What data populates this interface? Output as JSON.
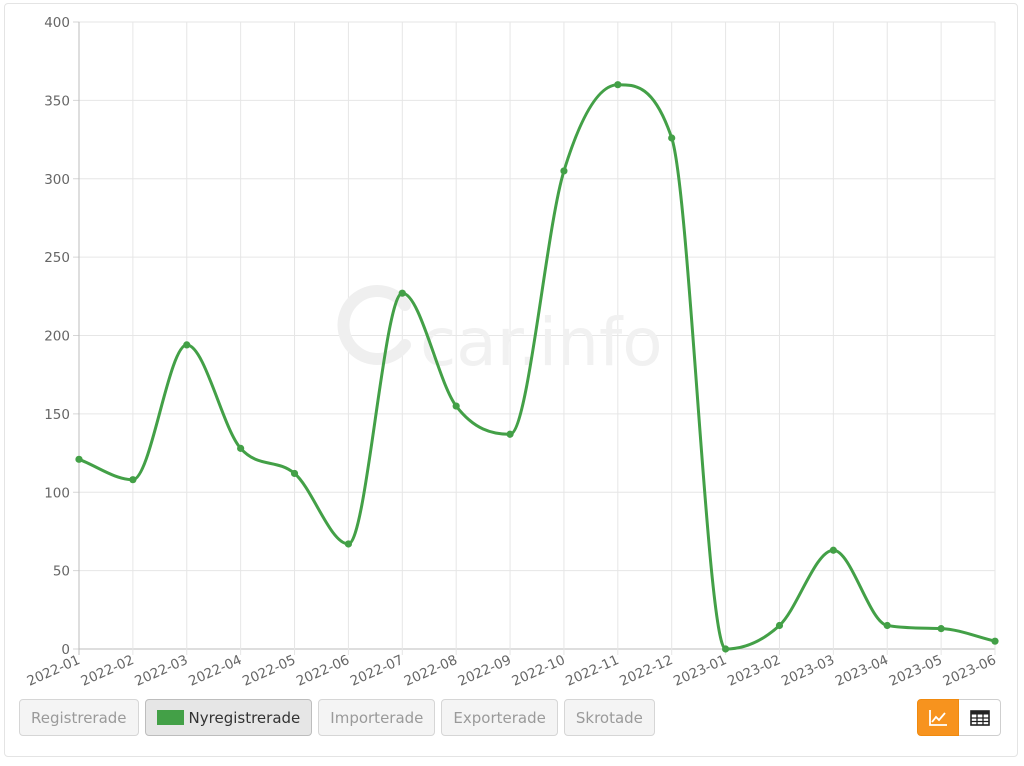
{
  "chart_data": {
    "type": "line",
    "categories": [
      "2022-01",
      "2022-02",
      "2022-03",
      "2022-04",
      "2022-05",
      "2022-06",
      "2022-07",
      "2022-08",
      "2022-09",
      "2022-10",
      "2022-11",
      "2022-12",
      "2023-01",
      "2023-02",
      "2023-03",
      "2023-04",
      "2023-05",
      "2023-06"
    ],
    "series": [
      {
        "name": "Nyregistrerade",
        "color": "#43a047",
        "values": [
          121,
          108,
          194,
          128,
          112,
          67,
          227,
          155,
          137,
          305,
          360,
          326,
          0,
          15,
          63,
          15,
          13,
          5
        ]
      }
    ],
    "ylim": [
      0,
      400
    ],
    "yticks": [
      "0",
      "50",
      "100",
      "150",
      "200",
      "250",
      "300",
      "350",
      "400"
    ],
    "grid": true,
    "watermark": "car.info"
  },
  "legend": {
    "items": [
      {
        "label": "Registrerade",
        "active": false
      },
      {
        "label": "Nyregistrerade",
        "active": true,
        "color": "#43a047"
      },
      {
        "label": "Importerade",
        "active": false
      },
      {
        "label": "Exporterade",
        "active": false
      },
      {
        "label": "Skrotade",
        "active": false
      }
    ]
  },
  "view_toggle": {
    "chart_icon": "line-chart-icon",
    "table_icon": "table-icon",
    "active": "chart",
    "accent": "#f7931e"
  }
}
